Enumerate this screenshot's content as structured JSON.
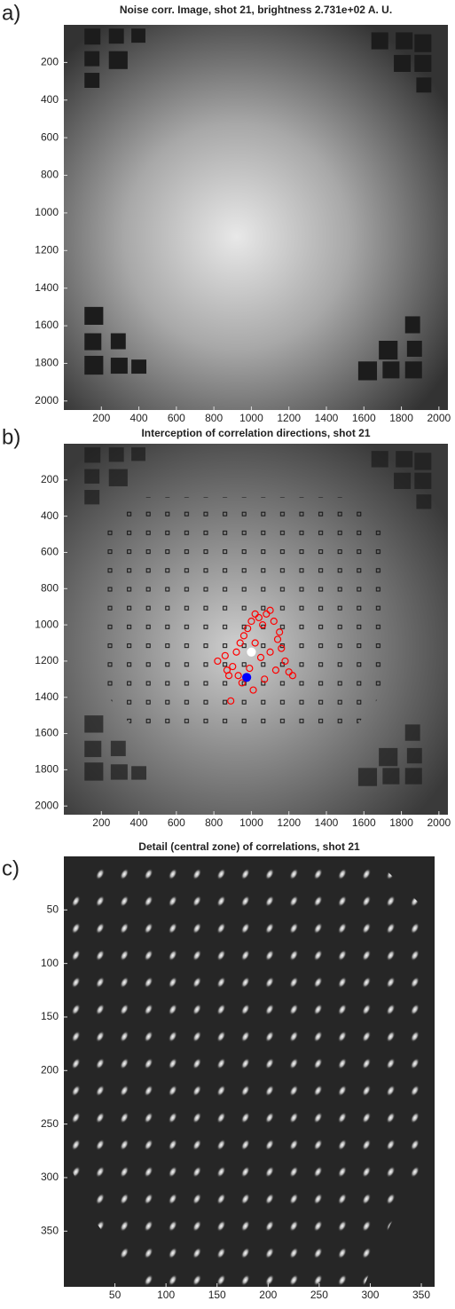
{
  "chart_data": [
    {
      "type": "image",
      "panel_label": "a)",
      "title": "Noise corr. Image, shot 21, brightness 2.731e+02 A. U.",
      "xlim": [
        0,
        2048
      ],
      "ylim": [
        0,
        2048
      ],
      "xticks": [
        200,
        400,
        600,
        800,
        1000,
        1200,
        1400,
        1600,
        1800,
        2000
      ],
      "yticks": [
        200,
        400,
        600,
        800,
        1000,
        1200,
        1400,
        1600,
        1800,
        2000
      ]
    },
    {
      "type": "image",
      "panel_label": "b)",
      "title": "Interception of correlation directions, shot 21",
      "xlim": [
        0,
        2048
      ],
      "ylim": [
        0,
        2048
      ],
      "xticks": [
        200,
        400,
        600,
        800,
        1000,
        1200,
        1400,
        1600,
        1800,
        2000
      ],
      "yticks": [
        200,
        400,
        600,
        800,
        1000,
        1200,
        1400,
        1600,
        1800,
        2000
      ],
      "series": [
        {
          "marker": "open-circle",
          "color": "#ff0000",
          "x": [
            820,
            860,
            880,
            900,
            920,
            940,
            960,
            980,
            1000,
            1020,
            1040,
            1060,
            1080,
            1100,
            1120,
            1140,
            1160,
            1180,
            1200,
            1220,
            950,
            1010,
            1070,
            1130,
            890,
            1050,
            990,
            930,
            1150,
            870,
            1100,
            1020
          ],
          "y": [
            1200,
            1170,
            1280,
            1230,
            1150,
            1100,
            1060,
            1020,
            980,
            940,
            960,
            1000,
            940,
            920,
            980,
            1080,
            1130,
            1200,
            1260,
            1280,
            1320,
            1360,
            1300,
            1250,
            1420,
            1180,
            1240,
            1280,
            1040,
            1250,
            1150,
            1100
          ]
        },
        {
          "marker": "filled-circle",
          "color": "#ffffff",
          "x": [
            1000
          ],
          "y": [
            1150
          ]
        },
        {
          "marker": "filled-circle",
          "color": "#0000ff",
          "x": [
            975
          ],
          "y": [
            1290
          ]
        }
      ]
    },
    {
      "type": "image",
      "panel_label": "c)",
      "title": "Detail (central zone) of correlations, shot 21",
      "xlim": [
        0,
        363
      ],
      "ylim": [
        0,
        402
      ],
      "xticks": [
        50,
        100,
        150,
        200,
        250,
        300,
        350
      ],
      "yticks": [
        50,
        100,
        150,
        200,
        250,
        300,
        350
      ]
    }
  ]
}
